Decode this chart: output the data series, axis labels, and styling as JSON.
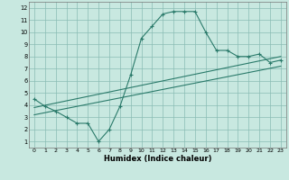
{
  "xlabel": "Humidex (Indice chaleur)",
  "line_color": "#2a7a6a",
  "bg_color": "#c8e8e0",
  "grid_color": "#8abcb4",
  "xlim": [
    -0.5,
    23.5
  ],
  "ylim": [
    0.5,
    12.5
  ],
  "xticks": [
    0,
    1,
    2,
    3,
    4,
    5,
    6,
    7,
    8,
    9,
    10,
    11,
    12,
    13,
    14,
    15,
    16,
    17,
    18,
    19,
    20,
    21,
    22,
    23
  ],
  "yticks": [
    1,
    2,
    3,
    4,
    5,
    6,
    7,
    8,
    9,
    10,
    11,
    12
  ],
  "curve1_x": [
    0,
    1,
    2,
    3,
    4,
    5,
    6,
    7,
    8,
    9,
    10,
    11,
    12,
    13,
    14,
    15,
    16,
    17,
    18,
    19,
    20,
    21,
    22,
    23
  ],
  "curve1_y": [
    4.5,
    3.9,
    3.5,
    3.0,
    2.5,
    2.5,
    1.0,
    2.0,
    3.9,
    6.5,
    9.5,
    10.5,
    11.5,
    11.7,
    11.7,
    11.7,
    10.0,
    8.5,
    8.5,
    8.0,
    8.0,
    8.2,
    7.5,
    7.7
  ],
  "line1_x": [
    0,
    23
  ],
  "line1_y": [
    3.8,
    8.0
  ],
  "line2_x": [
    0,
    23
  ],
  "line2_y": [
    3.2,
    7.2
  ]
}
